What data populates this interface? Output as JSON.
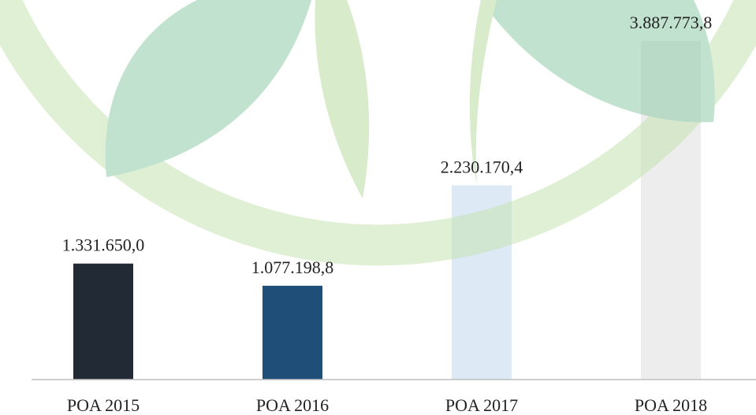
{
  "chart_data": {
    "type": "bar",
    "categories": [
      "POA 2015",
      "POA 2016",
      "POA 2017",
      "POA 2018"
    ],
    "values": [
      1331650.0,
      1077198.8,
      2230170.4,
      3887773.8
    ],
    "value_labels": [
      "1.331.650,0",
      "1.077.198,8",
      "2.230.170,4",
      "3.887.773,8"
    ],
    "colors": [
      "#222a35",
      "#1f4e79",
      "#dde9f5",
      "#ededed"
    ]
  }
}
